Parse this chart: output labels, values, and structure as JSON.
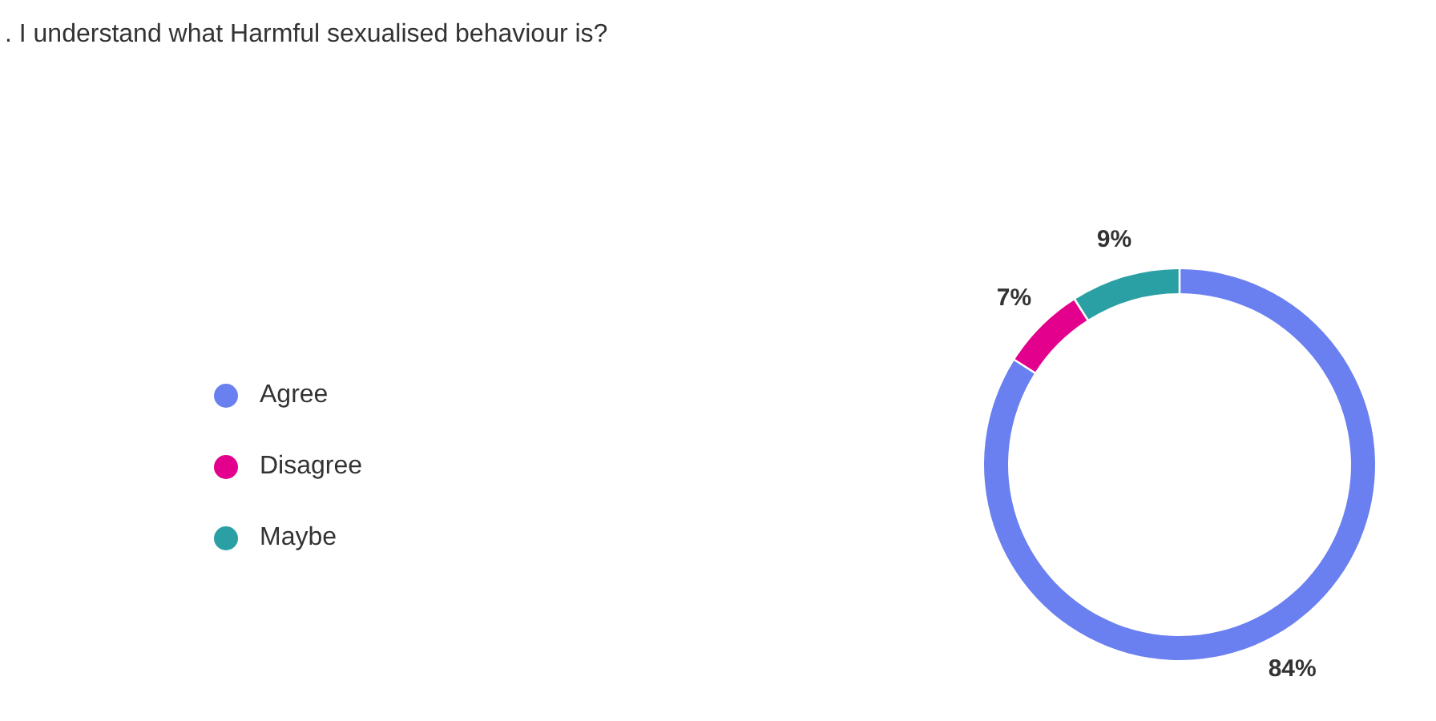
{
  "chart_data": {
    "type": "donut",
    "title": ". I understand what Harmful sexualised behaviour is?",
    "categories": [
      "Agree",
      "Disagree",
      "Maybe"
    ],
    "values": [
      84,
      7,
      9
    ],
    "colors": [
      "#6b80f0",
      "#e3008c",
      "#2aa0a4"
    ],
    "value_labels": [
      "84%",
      "7%",
      "9%"
    ],
    "legend": "left"
  }
}
